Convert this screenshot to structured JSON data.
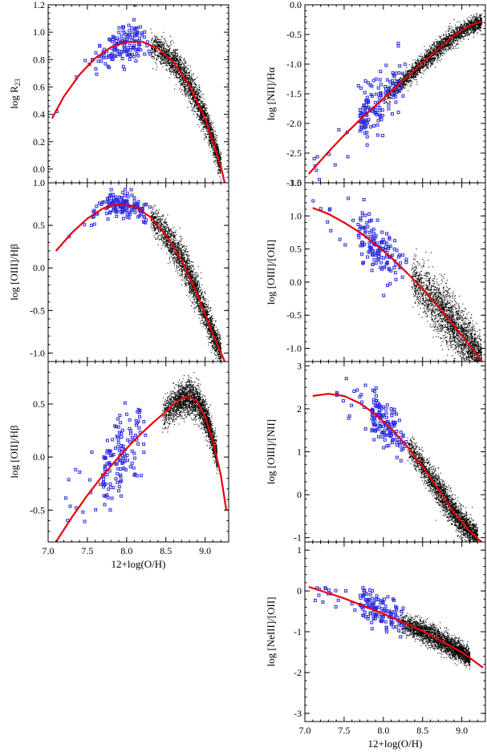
{
  "chart_data": [
    {
      "id": "p1",
      "type": "scatter",
      "ylabel_parts": [
        "log R",
        "23"
      ],
      "xlabel": "",
      "xlim": [
        7.0,
        9.3
      ],
      "ylim": [
        -0.1,
        1.2
      ],
      "yticks": [
        0.0,
        0.2,
        0.4,
        0.6,
        0.8,
        1.0,
        1.2
      ],
      "ytick_labels": [
        "0.0",
        "0.2",
        "0.4",
        "0.6",
        "0.8",
        "1.0",
        "1.2"
      ],
      "curve": {
        "x": [
          7.05,
          7.2,
          7.4,
          7.6,
          7.8,
          8.0,
          8.2,
          8.4,
          8.6,
          8.8,
          9.0,
          9.1,
          9.2,
          9.25
        ],
        "y": [
          0.37,
          0.53,
          0.69,
          0.81,
          0.89,
          0.93,
          0.93,
          0.88,
          0.78,
          0.61,
          0.37,
          0.2,
          0.02,
          -0.1
        ]
      },
      "blue_cloud": {
        "x_range": [
          7.1,
          8.3
        ],
        "center_x": 7.95,
        "center_y": 0.92,
        "spread_y": 0.07
      },
      "black_cloud": {
        "x_range": [
          8.3,
          9.2
        ],
        "spread_y": 0.05
      }
    },
    {
      "id": "p2",
      "type": "scatter",
      "ylabel_parts": [
        "log [OIII]/H",
        "β"
      ],
      "xlabel": "",
      "xlim": [
        7.0,
        9.3
      ],
      "ylim": [
        -1.1,
        1.0
      ],
      "yticks": [
        -1.0,
        -0.5,
        0.0,
        0.5,
        1.0
      ],
      "ytick_labels": [
        "-1.0",
        "-0.5",
        "0.0",
        "0.5",
        "1.0"
      ],
      "curve": {
        "x": [
          7.1,
          7.3,
          7.5,
          7.7,
          7.9,
          8.1,
          8.3,
          8.5,
          8.7,
          8.9,
          9.1,
          9.25
        ],
        "y": [
          0.2,
          0.41,
          0.58,
          0.7,
          0.75,
          0.72,
          0.6,
          0.39,
          0.09,
          -0.31,
          -0.78,
          -1.1
        ]
      },
      "blue_cloud": {
        "x_range": [
          7.1,
          8.3
        ],
        "center_x": 7.95,
        "center_y": 0.72,
        "spread_y": 0.08
      },
      "black_cloud": {
        "x_range": [
          8.3,
          9.2
        ],
        "spread_y": 0.09
      }
    },
    {
      "id": "p3",
      "type": "scatter",
      "ylabel_parts": [
        "log [OII]/H",
        "β"
      ],
      "xlabel": "12+log(O/H)",
      "xlim": [
        7.0,
        9.3
      ],
      "ylim": [
        -0.8,
        0.9
      ],
      "yticks": [
        -0.5,
        0.0,
        0.5
      ],
      "ytick_labels": [
        "-0.5",
        "0.0",
        "0.5"
      ],
      "xticks": [
        7.0,
        7.5,
        8.0,
        8.5,
        9.0
      ],
      "xtick_labels": [
        "7.0",
        "7.5",
        "8.0",
        "8.5",
        "9.0"
      ],
      "curve": {
        "x": [
          7.1,
          7.3,
          7.5,
          7.7,
          7.9,
          8.1,
          8.3,
          8.5,
          8.6,
          8.7,
          8.8,
          8.9,
          9.0,
          9.1,
          9.2,
          9.27
        ],
        "y": [
          -0.8,
          -0.57,
          -0.36,
          -0.17,
          0.0,
          0.16,
          0.3,
          0.43,
          0.5,
          0.55,
          0.57,
          0.52,
          0.38,
          0.15,
          -0.17,
          -0.5
        ]
      },
      "blue_cloud": {
        "x_range": [
          7.1,
          8.3
        ],
        "spread_y": 0.18
      },
      "black_cloud": {
        "x_range": [
          8.45,
          9.15
        ],
        "spread_y": 0.07
      }
    },
    {
      "id": "p4",
      "type": "scatter",
      "ylabel_parts": [
        "log [NII]/H",
        "α"
      ],
      "xlabel": "",
      "xlim": [
        7.0,
        9.3
      ],
      "ylim": [
        -3.0,
        0.0
      ],
      "yticks": [
        -3.0,
        -2.5,
        -2.0,
        -1.5,
        -1.0,
        -0.5,
        0.0
      ],
      "ytick_labels": [
        "-3.0",
        "-2.5",
        "-2.0",
        "-1.5",
        "-1.0",
        "-0.5",
        "0.0"
      ],
      "curve": {
        "x": [
          7.05,
          7.3,
          7.5,
          7.7,
          7.9,
          8.1,
          8.3,
          8.5,
          8.7,
          8.9,
          9.1,
          9.25
        ],
        "y": [
          -2.85,
          -2.48,
          -2.2,
          -1.94,
          -1.7,
          -1.46,
          -1.22,
          -0.98,
          -0.74,
          -0.52,
          -0.35,
          -0.28
        ]
      },
      "blue_cloud": {
        "x_range": [
          7.1,
          8.3
        ],
        "spread_y": 0.22
      },
      "black_cloud": {
        "x_range": [
          8.0,
          9.25
        ],
        "spread_y": 0.07
      }
    },
    {
      "id": "p5",
      "type": "scatter",
      "ylabel_parts": [
        "log [OIII]/[OII]",
        ""
      ],
      "xlabel": "",
      "xlim": [
        7.0,
        9.3
      ],
      "ylim": [
        -1.2,
        1.5
      ],
      "yticks": [
        -1.0,
        -0.5,
        0.0,
        0.5,
        1.0,
        1.5
      ],
      "ytick_labels": [
        "-1.0",
        "-0.5",
        "0.0",
        "0.5",
        "1.0",
        "1.5"
      ],
      "curve": {
        "x": [
          7.1,
          7.3,
          7.5,
          7.7,
          7.9,
          8.1,
          8.3,
          8.5,
          8.7,
          8.9,
          9.1,
          9.27
        ],
        "y": [
          1.12,
          1.03,
          0.9,
          0.75,
          0.57,
          0.37,
          0.14,
          -0.1,
          -0.37,
          -0.66,
          -0.95,
          -1.22
        ]
      },
      "blue_cloud": {
        "x_range": [
          7.1,
          8.3
        ],
        "spread_y": 0.22
      },
      "black_cloud": {
        "x_range": [
          8.35,
          9.25
        ],
        "spread_y": 0.18
      }
    },
    {
      "id": "p6",
      "type": "scatter",
      "ylabel_parts": [
        "log [OIII]/[NII]",
        ""
      ],
      "xlabel": "",
      "xlim": [
        7.0,
        9.3
      ],
      "ylim": [
        -1.1,
        3.1
      ],
      "yticks": [
        -1,
        0,
        1,
        2,
        3
      ],
      "ytick_labels": [
        "-1",
        "0",
        "1",
        "2",
        "3"
      ],
      "curve": {
        "x": [
          7.1,
          7.3,
          7.5,
          7.7,
          7.9,
          8.1,
          8.3,
          8.5,
          8.7,
          8.9,
          9.1,
          9.25
        ],
        "y": [
          2.3,
          2.35,
          2.3,
          2.13,
          1.87,
          1.54,
          1.13,
          0.66,
          0.13,
          -0.42,
          -0.85,
          -1.1
        ]
      },
      "blue_cloud": {
        "x_range": [
          7.4,
          8.3
        ],
        "spread_y": 0.25
      },
      "black_cloud": {
        "x_range": [
          8.3,
          9.2
        ],
        "spread_y": 0.15
      }
    },
    {
      "id": "p7",
      "type": "scatter",
      "ylabel_parts": [
        "log [NeIII]/[OII]",
        ""
      ],
      "xlabel": "12+log(O/H)",
      "xlim": [
        7.0,
        9.3
      ],
      "ylim": [
        -3.2,
        1.2
      ],
      "yticks": [
        -3,
        -2,
        -1,
        0,
        1
      ],
      "ytick_labels": [
        "-3",
        "-2",
        "-1",
        "0",
        "1"
      ],
      "xticks": [
        7.0,
        7.5,
        8.0,
        8.5,
        9.0
      ],
      "xtick_labels": [
        "7.0",
        "7.5",
        "8.0",
        "8.5",
        "9.0"
      ],
      "curve": {
        "x": [
          7.05,
          7.5,
          8.0,
          8.5,
          9.0,
          9.27
        ],
        "y": [
          0.1,
          -0.18,
          -0.56,
          -0.98,
          -1.5,
          -1.88
        ]
      },
      "blue_cloud": {
        "x_range": [
          7.1,
          8.3
        ],
        "spread_y": 0.22
      },
      "black_cloud": {
        "x_range": [
          8.2,
          9.1
        ],
        "spread_y": 0.12
      }
    }
  ],
  "colors": {
    "curve": "#e8000b",
    "blue_points": "#2a2adf",
    "black_points": "#000000",
    "axes": "#000000"
  }
}
